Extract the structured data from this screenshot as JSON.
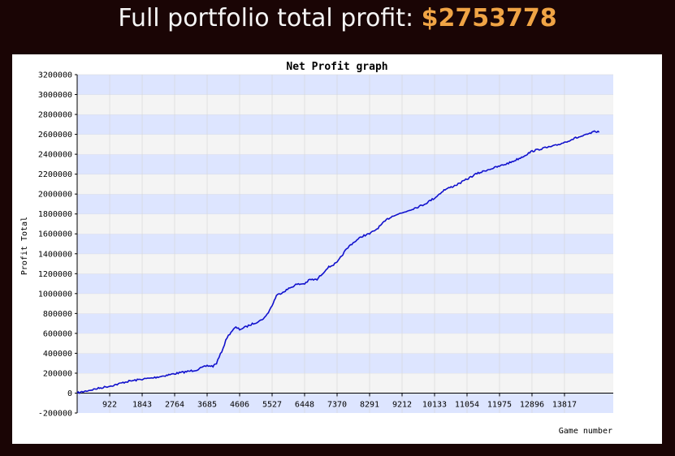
{
  "header": {
    "label": "Full portfolio total profit:",
    "value": "$2753778"
  },
  "colors": {
    "background": "#1a0505",
    "header_text": "#f5f5f5",
    "header_value": "#f0a445",
    "band_blue": "#dde5ff",
    "band_gray": "#f4f4f4",
    "line": "#1111cc"
  },
  "chart_data": {
    "type": "line",
    "title": "Net Profit graph",
    "xlabel": "Game number",
    "ylabel": "Profit Total",
    "xlim": [
      0,
      15200
    ],
    "ylim": [
      -200000,
      3200000
    ],
    "y_ticks": [
      -200000,
      0,
      200000,
      400000,
      600000,
      800000,
      1000000,
      1200000,
      1400000,
      1600000,
      1800000,
      2000000,
      2200000,
      2400000,
      2600000,
      2800000,
      3000000,
      3200000
    ],
    "x_ticks": [
      922,
      1843,
      2764,
      3685,
      4606,
      5527,
      6448,
      7370,
      8291,
      9212,
      10133,
      11054,
      11975,
      12896,
      13817
    ],
    "grid": true,
    "series": [
      {
        "x": [
          0,
          300,
          700,
          922,
          1100,
          1400,
          1843,
          2100,
          2400,
          2764,
          3100,
          3400,
          3685,
          3850,
          3950,
          4100,
          4250,
          4400,
          4500,
          4606,
          4750,
          5000,
          5200,
          5350,
          5527,
          5650,
          5800,
          6000,
          6200,
          6448,
          6600,
          6800,
          6950,
          7100,
          7370,
          7600,
          7750,
          7900,
          8100,
          8291,
          8500,
          8800,
          9000,
          9212,
          9500,
          9800,
          10133,
          10400,
          10800,
          11054,
          11300,
          11600,
          11975,
          12300,
          12600,
          12896,
          13200,
          13500,
          13817,
          14100,
          14400,
          14700,
          14800
        ],
        "y": [
          0,
          25000,
          55000,
          70000,
          85000,
          115000,
          140000,
          150000,
          170000,
          195000,
          215000,
          235000,
          275000,
          270000,
          300000,
          420000,
          560000,
          630000,
          660000,
          640000,
          660000,
          700000,
          730000,
          770000,
          880000,
          980000,
          1010000,
          1050000,
          1090000,
          1100000,
          1140000,
          1140000,
          1200000,
          1260000,
          1310000,
          1430000,
          1490000,
          1530000,
          1580000,
          1600000,
          1650000,
          1750000,
          1790000,
          1810000,
          1850000,
          1890000,
          1960000,
          2040000,
          2100000,
          2150000,
          2200000,
          2240000,
          2280000,
          2320000,
          2370000,
          2430000,
          2460000,
          2480000,
          2520000,
          2560000,
          2590000,
          2630000,
          2620000
        ]
      }
    ]
  }
}
